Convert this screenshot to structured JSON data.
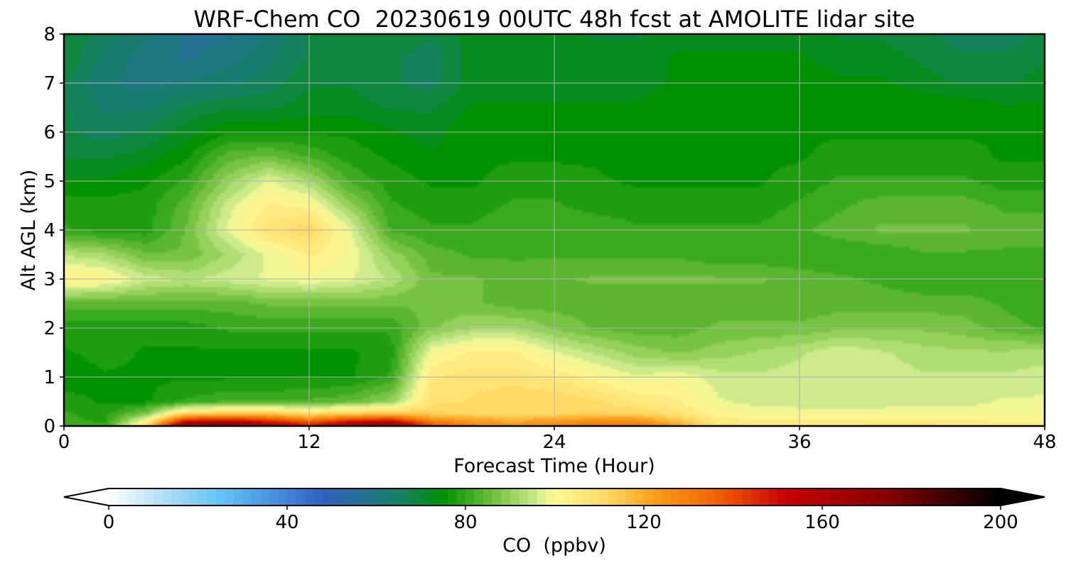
{
  "chart_data": {
    "type": "heatmap",
    "title": "WRF-Chem CO  20230619 00UTC 48h fcst at AMOLITE lidar site",
    "xlabel": "Forecast Time (Hour)",
    "ylabel": "Alt AGL (km)",
    "xlim": [
      0,
      48
    ],
    "ylim": [
      0,
      8
    ],
    "x_ticks": [
      0,
      12,
      24,
      36,
      48
    ],
    "y_ticks": [
      0,
      1,
      2,
      3,
      4,
      5,
      6,
      7,
      8
    ],
    "grid": true,
    "colorbar": {
      "label": "CO  (ppbv)",
      "range": [
        0,
        200
      ],
      "ticks": [
        0,
        40,
        80,
        120,
        160,
        200
      ],
      "extend": "both",
      "orientation": "horizontal",
      "placement": "bottom"
    },
    "grid_x_hours": [
      0,
      2,
      4,
      6,
      8,
      10,
      12,
      14,
      16,
      18,
      20,
      22,
      24,
      26,
      28,
      30,
      32,
      34,
      36,
      38,
      40,
      42,
      44,
      46,
      48
    ],
    "grid_z_km": [
      0,
      0.25,
      0.5,
      1,
      1.5,
      2,
      2.5,
      3,
      3.5,
      4,
      4.5,
      5,
      5.5,
      6,
      6.5,
      7,
      7.5,
      8
    ],
    "co_ppbv": [
      [
        80,
        80,
        110,
        175,
        180,
        165,
        150,
        170,
        175,
        140,
        130,
        125,
        130,
        135,
        135,
        122,
        108,
        106,
        106,
        106,
        108,
        108,
        106,
        105,
        105
      ],
      [
        80,
        78,
        88,
        112,
        115,
        115,
        110,
        113,
        115,
        113,
        112,
        112,
        112,
        113,
        112,
        108,
        102,
        100,
        100,
        100,
        100,
        100,
        100,
        100,
        100
      ],
      [
        78,
        76,
        76,
        80,
        82,
        82,
        83,
        85,
        90,
        108,
        110,
        112,
        112,
        110,
        106,
        104,
        98,
        96,
        95,
        95,
        95,
        96,
        96,
        98,
        98
      ],
      [
        74,
        76,
        76,
        76,
        76,
        76,
        76,
        76,
        80,
        106,
        108,
        108,
        106,
        102,
        98,
        100,
        96,
        95,
        96,
        96,
        96,
        95,
        95,
        95,
        96
      ],
      [
        76,
        78,
        76,
        76,
        76,
        76,
        76,
        76,
        78,
        100,
        104,
        104,
        98,
        94,
        90,
        88,
        90,
        92,
        94,
        97,
        95,
        93,
        92,
        92,
        93
      ],
      [
        78,
        78,
        78,
        78,
        80,
        80,
        80,
        80,
        80,
        88,
        92,
        92,
        88,
        85,
        84,
        84,
        86,
        86,
        86,
        88,
        88,
        88,
        87,
        84,
        82
      ],
      [
        84,
        84,
        84,
        84,
        84,
        86,
        86,
        86,
        86,
        86,
        86,
        84,
        84,
        84,
        84,
        84,
        84,
        84,
        84,
        84,
        84,
        84,
        84,
        82,
        80
      ],
      [
        104,
        102,
        96,
        94,
        96,
        98,
        100,
        98,
        94,
        86,
        86,
        84,
        85,
        86,
        86,
        86,
        86,
        86,
        84,
        83,
        82,
        80,
        80,
        80,
        80
      ],
      [
        94,
        92,
        86,
        86,
        92,
        98,
        104,
        100,
        90,
        84,
        82,
        82,
        82,
        82,
        82,
        82,
        80,
        80,
        80,
        80,
        80,
        82,
        82,
        82,
        82
      ],
      [
        80,
        78,
        78,
        86,
        98,
        108,
        112,
        98,
        82,
        80,
        80,
        82,
        82,
        82,
        80,
        80,
        80,
        80,
        82,
        84,
        86,
        86,
        86,
        84,
        84
      ],
      [
        78,
        78,
        78,
        84,
        96,
        104,
        102,
        90,
        80,
        78,
        78,
        80,
        80,
        78,
        78,
        78,
        78,
        78,
        80,
        82,
        84,
        84,
        84,
        82,
        82
      ],
      [
        74,
        74,
        76,
        80,
        90,
        98,
        92,
        82,
        78,
        76,
        76,
        78,
        78,
        77,
        76,
        76,
        76,
        76,
        78,
        80,
        80,
        80,
        80,
        78,
        78
      ],
      [
        70,
        70,
        72,
        76,
        84,
        86,
        82,
        78,
        76,
        74,
        76,
        76,
        76,
        76,
        75,
        76,
        76,
        76,
        76,
        78,
        78,
        78,
        78,
        76,
        76
      ],
      [
        68,
        66,
        68,
        72,
        76,
        76,
        76,
        76,
        74,
        72,
        76,
        76,
        76,
        76,
        74,
        76,
        76,
        76,
        76,
        76,
        76,
        76,
        76,
        76,
        76
      ],
      [
        68,
        64,
        64,
        68,
        70,
        70,
        72,
        72,
        70,
        70,
        74,
        74,
        74,
        74,
        74,
        76,
        76,
        76,
        76,
        76,
        76,
        76,
        76,
        74,
        74
      ],
      [
        68,
        62,
        60,
        62,
        64,
        66,
        70,
        70,
        68,
        66,
        72,
        72,
        72,
        72,
        72,
        74,
        74,
        76,
        76,
        74,
        74,
        72,
        70,
        70,
        72
      ],
      [
        70,
        64,
        60,
        58,
        60,
        64,
        68,
        70,
        68,
        66,
        72,
        72,
        72,
        72,
        72,
        74,
        74,
        74,
        74,
        72,
        72,
        70,
        68,
        68,
        70
      ],
      [
        70,
        66,
        62,
        58,
        58,
        62,
        68,
        70,
        70,
        68,
        72,
        72,
        72,
        70,
        70,
        72,
        72,
        72,
        72,
        70,
        70,
        68,
        66,
        66,
        68
      ]
    ]
  }
}
